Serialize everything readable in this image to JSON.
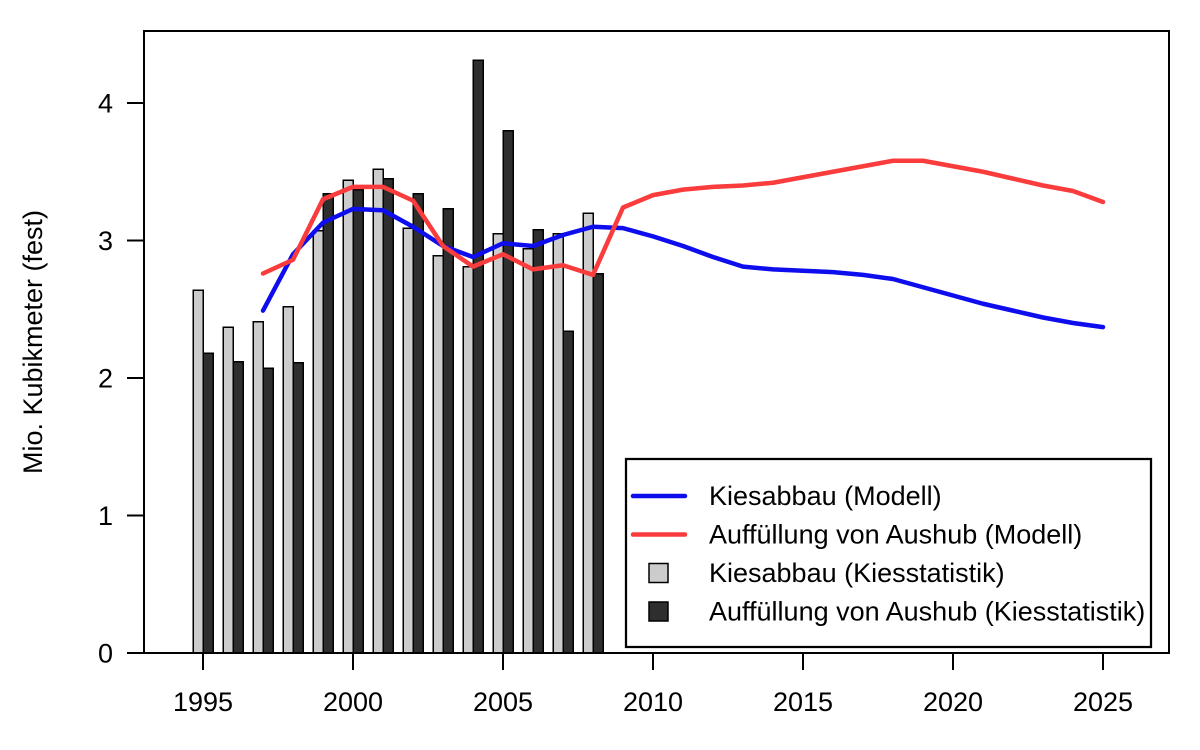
{
  "figure": {
    "background": "#ffffff"
  },
  "colors": {
    "model_kiesabbau": "#0d0dee",
    "model_auffuellung": "#fa3c3c",
    "stat_kiesabbau": "#cccccc",
    "stat_auffuellung": "#2e2e2e",
    "axis": "#000000",
    "legend_border": "#000000",
    "legend_background": "#ffffff"
  },
  "legend": {
    "items": [
      {
        "type": "line",
        "color_key": "model_kiesabbau",
        "label": "Kiesabbau (Modell)"
      },
      {
        "type": "line",
        "color_key": "model_auffuellung",
        "label": "Auffüllung von Aushub (Modell)"
      },
      {
        "type": "box",
        "color_key": "stat_kiesabbau",
        "label": "Kiesabbau (Kiesstatistik)"
      },
      {
        "type": "box",
        "color_key": "stat_auffuellung",
        "label": "Auffüllung von Aushub (Kiesstatistik)"
      }
    ]
  },
  "chart_data": {
    "type": "bar",
    "title": "",
    "xlabel": "",
    "ylabel": "Mio. Kubikmeter (fest)",
    "xlim": [
      1993,
      2027.2
    ],
    "ylim": [
      0,
      4.52
    ],
    "grid": false,
    "legend_position": "bottom-right",
    "x_ticks": [
      1995,
      2000,
      2005,
      2010,
      2015,
      2020,
      2025
    ],
    "y_ticks": [
      0,
      1,
      2,
      3,
      4
    ],
    "bars": {
      "years": [
        1995,
        1996,
        1997,
        1998,
        1999,
        2000,
        2001,
        2002,
        2003,
        2004,
        2005,
        2006,
        2007,
        2008
      ],
      "series": [
        {
          "name": "Kiesabbau (Kiesstatistik)",
          "color_key": "stat_kiesabbau",
          "values": [
            2.64,
            2.37,
            2.41,
            2.52,
            3.07,
            3.44,
            3.52,
            3.09,
            2.89,
            2.81,
            3.05,
            2.94,
            3.05,
            3.2
          ]
        },
        {
          "name": "Auffüllung von Aushub (Kiesstatistik)",
          "color_key": "stat_auffuellung",
          "values": [
            2.18,
            2.12,
            2.07,
            2.11,
            3.34,
            3.37,
            3.45,
            3.34,
            3.23,
            4.31,
            3.8,
            3.08,
            2.34,
            2.76
          ]
        }
      ]
    },
    "lines": [
      {
        "name": "Kiesabbau (Modell)",
        "color_key": "model_kiesabbau",
        "x": [
          1997,
          1998,
          1999,
          2000,
          2001,
          2002,
          2003,
          2004,
          2005,
          2006,
          2007,
          2008,
          2009,
          2010,
          2011,
          2012,
          2013,
          2014,
          2015,
          2016,
          2017,
          2018,
          2019,
          2020,
          2021,
          2022,
          2023,
          2024,
          2025
        ],
        "values": [
          2.49,
          2.9,
          3.13,
          3.23,
          3.22,
          3.1,
          2.96,
          2.88,
          2.98,
          2.96,
          3.04,
          3.1,
          3.09,
          3.03,
          2.96,
          2.88,
          2.81,
          2.79,
          2.78,
          2.77,
          2.75,
          2.72,
          2.66,
          2.6,
          2.54,
          2.49,
          2.44,
          2.4,
          2.37
        ]
      },
      {
        "name": "Auffüllung von Aushub (Modell)",
        "color_key": "model_auffuellung",
        "x": [
          1997,
          1998,
          1999,
          2000,
          2001,
          2002,
          2003,
          2004,
          2005,
          2006,
          2007,
          2008,
          2009,
          2010,
          2011,
          2012,
          2013,
          2014,
          2015,
          2016,
          2017,
          2018,
          2019,
          2020,
          2021,
          2022,
          2023,
          2024,
          2025
        ],
        "values": [
          2.76,
          2.86,
          3.3,
          3.39,
          3.39,
          3.29,
          2.96,
          2.81,
          2.9,
          2.79,
          2.82,
          2.75,
          3.24,
          3.33,
          3.37,
          3.39,
          3.4,
          3.42,
          3.46,
          3.5,
          3.54,
          3.58,
          3.58,
          3.54,
          3.5,
          3.45,
          3.4,
          3.36,
          3.28
        ]
      }
    ]
  }
}
